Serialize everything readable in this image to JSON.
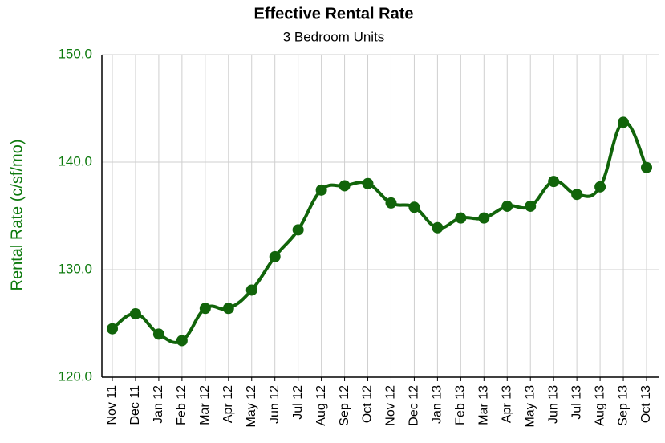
{
  "chart_data": {
    "type": "line",
    "title": "Effective Rental Rate",
    "subtitle": "3 Bedroom Units",
    "y_label": "Rental Rate (c/sf/mo)",
    "categories": [
      "Nov 11",
      "Dec 11",
      "Jan 12",
      "Feb 12",
      "Mar 12",
      "Apr 12",
      "May 12",
      "Jun 12",
      "Jul 12",
      "Aug 12",
      "Sep 12",
      "Oct 12",
      "Nov 12",
      "Dec 12",
      "Jan 13",
      "Feb 13",
      "Mar 13",
      "Apr 13",
      "May 13",
      "Jun 13",
      "Jul 13",
      "Aug 13",
      "Sep 13",
      "Oct 13"
    ],
    "series": [
      {
        "name": "Effective Rental Rate",
        "color": "#11640a",
        "values": [
          124.5,
          125.9,
          124.0,
          123.4,
          126.4,
          126.4,
          128.1,
          131.2,
          133.7,
          137.4,
          137.8,
          138.0,
          136.2,
          135.8,
          133.9,
          134.8,
          134.8,
          135.9,
          135.9,
          138.2,
          137.0,
          137.7,
          143.7,
          139.5
        ]
      }
    ],
    "ylim": [
      120,
      150
    ],
    "yticks": [
      {
        "value": 120,
        "label": "120.0"
      },
      {
        "value": 130,
        "label": "130.0"
      },
      {
        "value": 140,
        "label": "140.0"
      },
      {
        "value": 150,
        "label": "150.0"
      }
    ],
    "grid": true
  }
}
